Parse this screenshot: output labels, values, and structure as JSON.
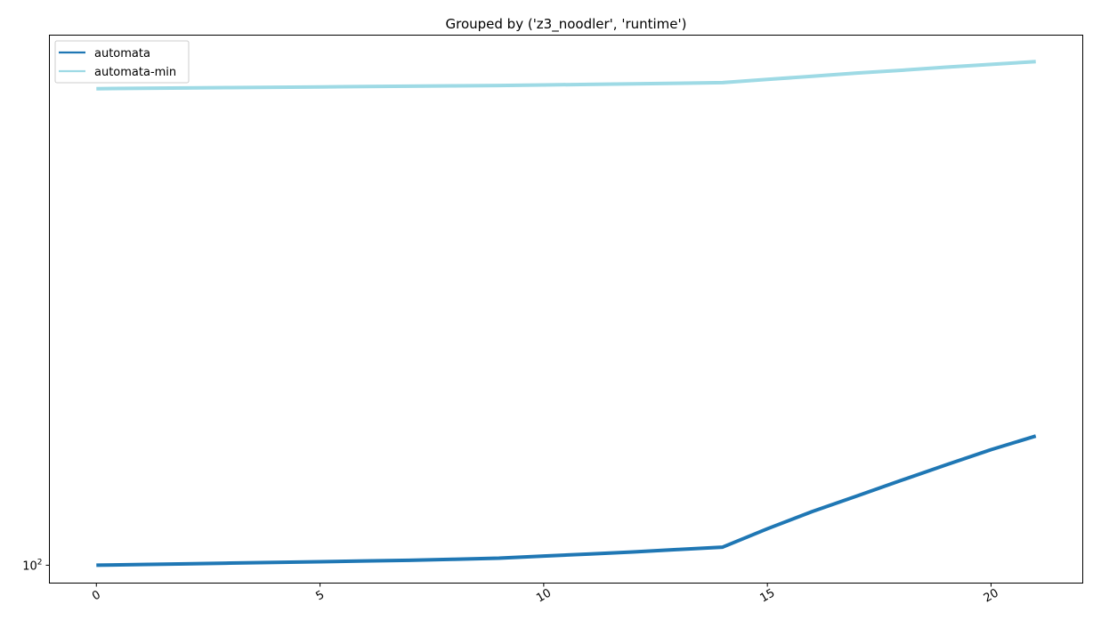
{
  "chart_data": {
    "type": "line",
    "title": "Grouped by ('z3_noodler', 'runtime')",
    "xlabel": "",
    "ylabel": "",
    "yscale": "log",
    "xlim": [
      -1.05,
      22.05
    ],
    "ylim": [
      97.5,
      212
    ],
    "grid": false,
    "legend_position": "top-left",
    "x_ticks": [
      0,
      5,
      10,
      15,
      20
    ],
    "y_ticks": [
      {
        "value": 100,
        "base": "10",
        "exponent": "2"
      }
    ],
    "series": [
      {
        "name": "automata",
        "color": "#1f77b4",
        "x": [
          0,
          1,
          2,
          3,
          4,
          5,
          6,
          7,
          8,
          9,
          10,
          11,
          12,
          13,
          14,
          15,
          16,
          17,
          18,
          19,
          20,
          21
        ],
        "values": [
          100.0,
          100.1,
          100.2,
          100.3,
          100.4,
          100.5,
          100.6,
          100.7,
          100.85,
          101.0,
          101.3,
          101.6,
          101.9,
          102.25,
          102.6,
          105.3,
          107.9,
          110.3,
          112.8,
          115.3,
          117.8,
          120.1
        ]
      },
      {
        "name": "automata-min",
        "color": "#9edae5",
        "x": [
          0,
          1,
          2,
          3,
          4,
          5,
          6,
          7,
          8,
          9,
          10,
          11,
          12,
          13,
          14,
          15,
          16,
          17,
          18,
          19,
          20,
          21
        ],
        "values": [
          196.5,
          196.6,
          196.7,
          196.8,
          196.9,
          197.0,
          197.1,
          197.2,
          197.3,
          197.4,
          197.55,
          197.7,
          197.85,
          198.0,
          198.2,
          199.1,
          200.0,
          200.9,
          201.7,
          202.6,
          203.4,
          204.2
        ]
      }
    ]
  }
}
